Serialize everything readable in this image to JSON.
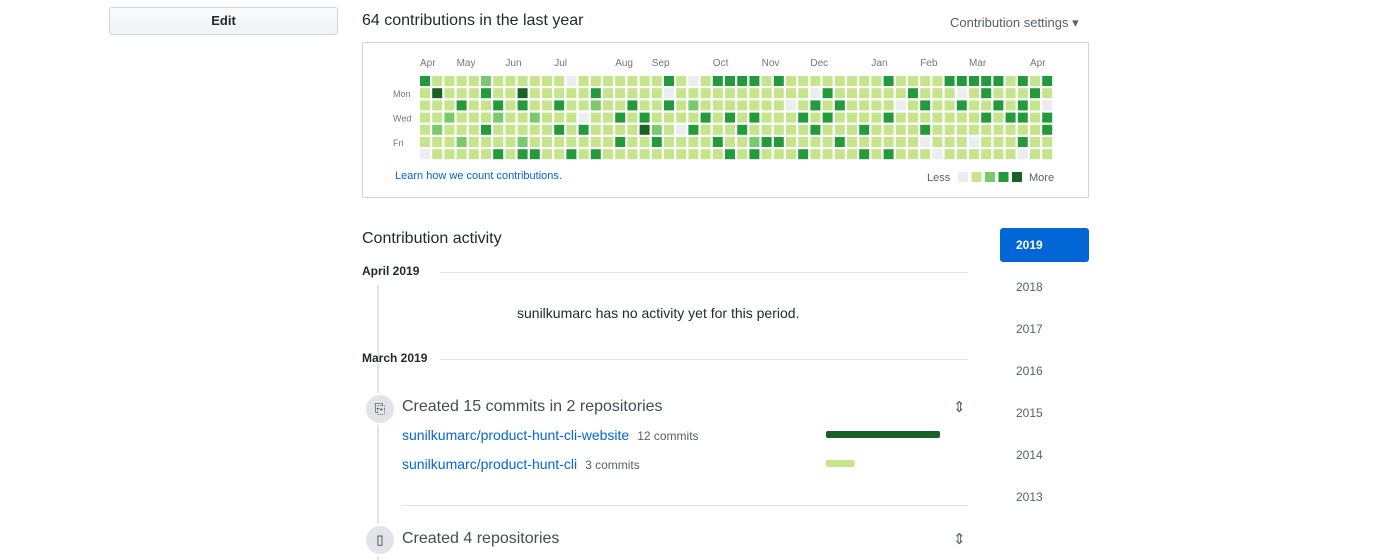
{
  "sidebar": {
    "edit_button": "Edit"
  },
  "contributions": {
    "title": "64 contributions in the last year",
    "settings": "Contribution settings",
    "months": [
      "Apr",
      "May",
      "Jun",
      "Jul",
      "Aug",
      "Sep",
      "Oct",
      "Nov",
      "Dec",
      "Jan",
      "Feb",
      "Mar",
      "Apr"
    ],
    "days": [
      "Mon",
      "Wed",
      "Fri"
    ],
    "learn_link": "Learn how we count contributions.",
    "less": "Less",
    "more": "More",
    "level_colors": [
      "#ebedf0",
      "#c6e48b",
      "#7bc96f",
      "#239a3b",
      "#196127"
    ],
    "levels": [
      [
        3,
        1,
        1,
        1,
        1,
        1,
        0
      ],
      [
        1,
        4,
        1,
        1,
        2,
        1,
        1
      ],
      [
        1,
        1,
        1,
        2,
        1,
        1,
        1
      ],
      [
        1,
        1,
        3,
        1,
        1,
        2,
        1
      ],
      [
        1,
        1,
        1,
        1,
        1,
        1,
        1
      ],
      [
        2,
        3,
        1,
        1,
        3,
        1,
        1
      ],
      [
        1,
        1,
        3,
        2,
        1,
        1,
        3
      ],
      [
        1,
        1,
        1,
        1,
        1,
        1,
        1
      ],
      [
        1,
        4,
        3,
        1,
        1,
        2,
        3
      ],
      [
        1,
        1,
        1,
        2,
        1,
        1,
        3
      ],
      [
        1,
        1,
        1,
        1,
        1,
        1,
        1
      ],
      [
        1,
        1,
        3,
        1,
        3,
        1,
        1
      ],
      [
        0,
        1,
        1,
        1,
        1,
        1,
        3
      ],
      [
        1,
        1,
        1,
        0,
        3,
        1,
        1
      ],
      [
        1,
        3,
        2,
        1,
        1,
        1,
        3
      ],
      [
        1,
        1,
        1,
        1,
        1,
        1,
        1
      ],
      [
        1,
        1,
        1,
        3,
        1,
        3,
        1
      ],
      [
        1,
        1,
        3,
        1,
        1,
        1,
        1
      ],
      [
        1,
        1,
        1,
        3,
        4,
        1,
        1
      ],
      [
        1,
        1,
        1,
        1,
        2,
        3,
        1
      ],
      [
        3,
        0,
        3,
        1,
        1,
        1,
        1
      ],
      [
        1,
        1,
        1,
        1,
        0,
        1,
        1
      ],
      [
        0,
        1,
        2,
        1,
        3,
        1,
        1
      ],
      [
        1,
        1,
        1,
        3,
        1,
        1,
        1
      ],
      [
        3,
        1,
        1,
        1,
        1,
        3,
        1
      ],
      [
        3,
        1,
        1,
        3,
        1,
        1,
        3
      ],
      [
        3,
        1,
        1,
        1,
        3,
        1,
        1
      ],
      [
        3,
        1,
        1,
        3,
        1,
        2,
        3
      ],
      [
        1,
        1,
        1,
        1,
        1,
        3,
        1
      ],
      [
        3,
        1,
        1,
        1,
        1,
        3,
        1
      ],
      [
        1,
        1,
        0,
        1,
        1,
        1,
        1
      ],
      [
        1,
        1,
        1,
        3,
        1,
        1,
        3
      ],
      [
        1,
        0,
        3,
        1,
        3,
        1,
        1
      ],
      [
        1,
        3,
        1,
        3,
        1,
        1,
        1
      ],
      [
        1,
        1,
        3,
        1,
        1,
        3,
        1
      ],
      [
        1,
        1,
        1,
        1,
        1,
        1,
        1
      ],
      [
        1,
        1,
        1,
        1,
        3,
        1,
        3
      ],
      [
        1,
        1,
        1,
        1,
        1,
        1,
        1
      ],
      [
        3,
        1,
        1,
        3,
        1,
        1,
        3
      ],
      [
        1,
        1,
        0,
        1,
        1,
        1,
        1
      ],
      [
        1,
        3,
        1,
        1,
        1,
        1,
        1
      ],
      [
        1,
        1,
        3,
        1,
        3,
        0,
        1
      ],
      [
        1,
        1,
        1,
        1,
        1,
        1,
        0
      ],
      [
        3,
        1,
        1,
        1,
        1,
        1,
        1
      ],
      [
        3,
        0,
        3,
        1,
        1,
        1,
        1
      ],
      [
        3,
        1,
        1,
        1,
        1,
        0,
        1
      ],
      [
        3,
        3,
        1,
        3,
        1,
        1,
        1
      ],
      [
        3,
        1,
        3,
        1,
        1,
        1,
        1
      ],
      [
        1,
        1,
        1,
        3,
        1,
        1,
        1
      ],
      [
        3,
        1,
        3,
        3,
        1,
        3,
        0
      ],
      [
        1,
        3,
        1,
        1,
        1,
        1,
        1
      ],
      [
        3,
        1,
        0,
        3,
        3,
        1,
        1
      ]
    ]
  },
  "activity": {
    "title": "Contribution activity",
    "years": [
      "2019",
      "2018",
      "2017",
      "2016",
      "2015",
      "2014",
      "2013"
    ],
    "periods": [
      {
        "label": "April 2019",
        "empty": "sunilkumarc has no activity yet for this period."
      },
      {
        "label": "March 2019"
      }
    ],
    "commits_summary": "Created 15 commits in 2 repositories",
    "repos": [
      {
        "name": "sunilkumarc/product-hunt-cli-website",
        "commits": 12,
        "commits_label": "12 commits",
        "color": "#196127"
      },
      {
        "name": "sunilkumarc/product-hunt-cli",
        "commits": 3,
        "commits_label": "3 commits",
        "color": "#c6e48b"
      }
    ],
    "repos_summary": "Created 4 repositories"
  }
}
